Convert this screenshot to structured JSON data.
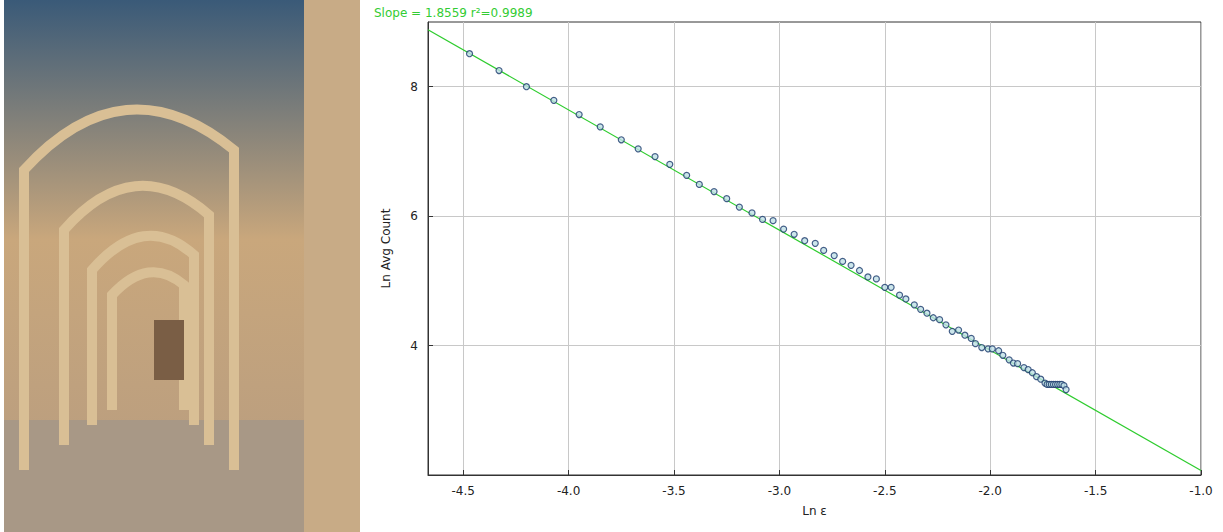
{
  "chart_data": {
    "type": "scatter",
    "title": "Slope = 1.8559 r²=0.9989",
    "x_label": "Ln ε",
    "y_label": "Ln Avg Count",
    "xlim": [
      -4.667,
      -1.0
    ],
    "ylim": [
      2,
      9
    ],
    "xticks": [
      -4.5,
      {
        "value": -4.0,
        "label": "-4.0"
      },
      -3.5,
      {
        "value": -3.0,
        "label": "-3.0"
      },
      -2.5,
      {
        "value": -2.0,
        "label": "-2.0"
      },
      -1.5,
      {
        "value": -1.0,
        "label": "-1.0"
      }
    ],
    "yticks": [
      4,
      6,
      8
    ],
    "grid": true,
    "series": [
      {
        "type": "scatter",
        "marker": "circle",
        "color": "#1a3a6b",
        "x": [
          -4.47,
          -4.33,
          -4.2,
          -4.07,
          -3.95,
          -3.85,
          -3.75,
          -3.67,
          -3.59,
          -3.52,
          -3.44,
          -3.38,
          -3.31,
          -3.25,
          -3.19,
          -3.13,
          -3.08,
          -3.03,
          -2.98,
          -2.93,
          -2.88,
          -2.83,
          -2.79,
          -2.74,
          -2.7,
          -2.66,
          -2.62,
          -2.58,
          -2.54,
          -2.5,
          -2.47,
          -2.43,
          -2.4,
          -2.36,
          -2.33,
          -2.3,
          -2.27,
          -2.24,
          -2.21,
          -2.18,
          -2.15,
          -2.12,
          -2.09,
          -2.07,
          -2.04,
          -2.01,
          -1.99,
          -1.96,
          -1.94,
          -1.91,
          -1.89,
          -1.87,
          -1.84,
          -1.82,
          -1.8,
          -1.78,
          -1.76,
          -1.74,
          -1.73,
          -1.72,
          -1.71,
          -1.7,
          -1.69,
          -1.68,
          -1.67,
          -1.66,
          -1.65,
          -1.64
        ],
        "values": [
          8.51,
          8.25,
          8.0,
          7.79,
          7.57,
          7.38,
          7.18,
          7.04,
          6.92,
          6.8,
          6.63,
          6.49,
          6.38,
          6.27,
          6.14,
          6.05,
          5.95,
          5.93,
          5.8,
          5.72,
          5.62,
          5.58,
          5.47,
          5.39,
          5.3,
          5.24,
          5.16,
          5.06,
          5.03,
          4.9,
          4.9,
          4.78,
          4.72,
          4.63,
          4.56,
          4.5,
          4.43,
          4.4,
          4.32,
          4.22,
          4.24,
          4.16,
          4.11,
          4.03,
          3.97,
          3.95,
          3.95,
          3.92,
          3.85,
          3.78,
          3.73,
          3.72,
          3.66,
          3.63,
          3.58,
          3.52,
          3.48,
          3.42,
          3.4,
          3.4,
          3.4,
          3.4,
          3.4,
          3.4,
          3.4,
          3.4,
          3.38,
          3.32
        ]
      },
      {
        "type": "line",
        "line_style": "solid",
        "color": "#2ecc2e",
        "x": [
          -4.667,
          -1.0
        ],
        "values": [
          8.88,
          2.07
        ]
      }
    ]
  }
}
